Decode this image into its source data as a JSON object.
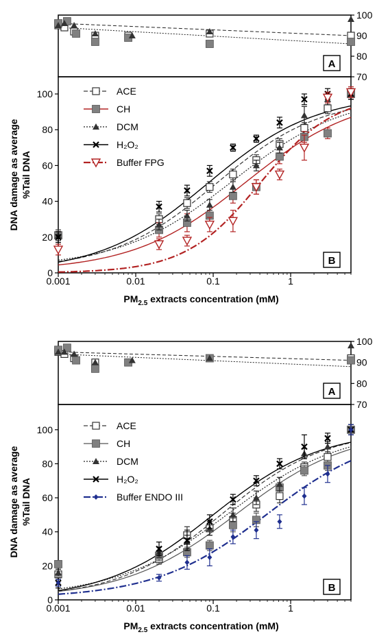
{
  "figure": {
    "panels": [
      {
        "id": "top",
        "chart_data": {
          "type": "scatter",
          "ylabel_line1": "DNA damage  as average",
          "ylabel_line2": "%Tail DNA",
          "xlabel_main": "PM",
          "xlabel_sub": "2.5",
          "xlabel_rest": " extracts concentration (mM)",
          "xscale": "log",
          "xlim": [
            0.001,
            6
          ],
          "xticks": [
            "0.001",
            "0.01",
            "0.1",
            "1"
          ],
          "ylim": [
            0,
            105
          ],
          "yticks": [
            "0",
            "20",
            "40",
            "60",
            "80",
            "100"
          ],
          "inset_ylim": [
            70,
            100
          ],
          "inset_yticks": [
            "70",
            "80",
            "90",
            "100"
          ],
          "label_A": "A",
          "label_B": "B",
          "legend_position": "top-left",
          "series": [
            {
              "name": "ACE",
              "color": "#333333",
              "marker": "open-square",
              "dash": "6,3",
              "width": 1.2,
              "x": [
                0.001,
                0.02,
                0.046,
                0.09,
                0.18,
                0.36,
                0.72,
                1.5,
                3,
                6
              ],
              "y": [
                21,
                30,
                39,
                48,
                55,
                63,
                72,
                81,
                92,
                100
              ],
              "err": [
                3,
                3,
                3,
                3,
                3,
                3,
                3,
                3,
                3,
                3
              ],
              "fit": {
                "bottom": 2,
                "top": 98,
                "ec50": 0.11,
                "hill": 0.65
              },
              "inset_x": [
                0.001,
                0.0012,
                0.0016,
                0.003,
                0.008,
                0.09,
                6
              ],
              "inset_y": [
                95,
                94,
                92,
                90,
                90,
                91,
                90
              ]
            },
            {
              "name": "CH",
              "color": "#b22222",
              "marker": "filled-square",
              "dash": "",
              "width": 1.4,
              "x": [
                0.001,
                0.02,
                0.046,
                0.09,
                0.18,
                0.36,
                0.72,
                1.5,
                3,
                6
              ],
              "y": [
                21,
                24,
                28,
                32,
                43,
                48,
                65,
                76,
                78,
                100
              ],
              "err": [
                2,
                4,
                5,
                5,
                4,
                4,
                4,
                3,
                3,
                3
              ],
              "fit": {
                "bottom": 1,
                "top": 100,
                "ec50": 0.26,
                "hill": 0.6
              },
              "inset_x": [
                0.001,
                0.0013,
                0.0017,
                0.003,
                0.008,
                0.09,
                6
              ],
              "inset_y": [
                96,
                97,
                91,
                87,
                89,
                86,
                87
              ]
            },
            {
              "name": "DCM",
              "color": "#222222",
              "marker": "filled-triangle",
              "dash": "2,2",
              "width": 1.2,
              "x": [
                0.001,
                0.02,
                0.046,
                0.09,
                0.18,
                0.36,
                0.72,
                1.5,
                3,
                6
              ],
              "y": [
                21,
                27,
                32,
                38,
                48,
                60,
                70,
                88,
                97,
                100
              ],
              "err": [
                2,
                3,
                3,
                3,
                3,
                3,
                3,
                5,
                3,
                3
              ],
              "fit": {
                "bottom": 3,
                "top": 100,
                "ec50": 0.18,
                "hill": 0.6
              },
              "inset_x": [
                0.001,
                0.0012,
                0.0016,
                0.003,
                0.009,
                0.09,
                6
              ],
              "inset_y": [
                95,
                96,
                95,
                91,
                90,
                92,
                98
              ]
            },
            {
              "name": "H₂O₂",
              "color": "#000000",
              "marker": "cross",
              "dash": "",
              "width": 1.4,
              "x": [
                0.001,
                0.02,
                0.046,
                0.09,
                0.18,
                0.36,
                0.72,
                1.5,
                3,
                6
              ],
              "y": [
                20,
                37,
                46,
                57,
                70,
                75,
                84,
                97,
                100,
                100
              ],
              "err": [
                3,
                3,
                3,
                3,
                2,
                2,
                3,
                3,
                3,
                3
              ],
              "fit": {
                "bottom": 0,
                "top": 100,
                "ec50": 0.085,
                "hill": 0.62
              },
              "inset_x": [],
              "inset_y": []
            },
            {
              "name": "Buffer FPG",
              "color": "#b22222",
              "marker": "open-triangle-down",
              "dash": "10,3,2,3",
              "width": 2.2,
              "x": [
                0.001,
                0.02,
                0.046,
                0.09,
                0.18,
                0.36,
                0.72,
                1.5,
                3,
                6
              ],
              "y": [
                13,
                16,
                18,
                27,
                29,
                48,
                55,
                70,
                98,
                101
              ],
              "err": [
                3,
                3,
                3,
                4,
                6,
                4,
                3,
                7,
                3,
                3
              ],
              "fit": {
                "bottom": 0,
                "top": 100,
                "ec50": 0.4,
                "hill": 0.9
              },
              "inset_x": [],
              "inset_y": []
            }
          ],
          "inset_lines": [
            {
              "dash": "5,3",
              "y0": 96,
              "y1": 90
            },
            {
              "dash": "2,2",
              "y0": 94,
              "y1": 86
            }
          ]
        }
      },
      {
        "id": "bottom",
        "chart_data": {
          "type": "scatter",
          "ylabel_line1": "DNA damage  as average",
          "ylabel_line2": "%Tail DNA",
          "xlabel_main": "PM",
          "xlabel_sub": "2.5",
          "xlabel_rest": " extracts concentration (mM)",
          "xscale": "log",
          "xlim": [
            0.001,
            6
          ],
          "xticks": [
            "0.001",
            "0.01",
            "0.1",
            "1"
          ],
          "ylim": [
            0,
            110
          ],
          "yticks": [
            "0",
            "20",
            "40",
            "60",
            "80",
            "100"
          ],
          "inset_ylim": [
            70,
            100
          ],
          "inset_yticks": [
            "70",
            "80",
            "90",
            "100"
          ],
          "label_A": "A",
          "label_B": "B",
          "legend_position": "top-left",
          "series": [
            {
              "name": "ACE",
              "color": "#333333",
              "marker": "open-square",
              "dash": "6,3",
              "width": 1.2,
              "x": [
                0.001,
                0.02,
                0.046,
                0.09,
                0.18,
                0.36,
                0.72,
                1.5,
                3,
                6
              ],
              "y": [
                15,
                24,
                38,
                42,
                47,
                56,
                61,
                78,
                84,
                100
              ],
              "err": [
                3,
                3,
                5,
                4,
                4,
                4,
                4,
                3,
                3,
                3
              ],
              "fit": {
                "bottom": 1,
                "top": 100,
                "ec50": 0.13,
                "hill": 0.65
              },
              "inset_x": [
                0.001,
                0.0012,
                0.0016,
                0.003,
                0.008,
                0.09,
                6
              ],
              "inset_y": [
                95,
                94,
                92,
                90,
                90,
                92,
                92
              ]
            },
            {
              "name": "CH",
              "color": "#555555",
              "marker": "filled-square",
              "dash": "",
              "width": 1.2,
              "x": [
                0.001,
                0.02,
                0.046,
                0.09,
                0.18,
                0.36,
                0.72,
                1.5,
                3,
                6
              ],
              "y": [
                21,
                26,
                28,
                32,
                44,
                47,
                66,
                76,
                79,
                100
              ],
              "err": [
                2,
                3,
                3,
                3,
                4,
                4,
                3,
                3,
                3,
                3
              ],
              "fit": {
                "bottom": 1,
                "top": 100,
                "ec50": 0.2,
                "hill": 0.6
              },
              "inset_x": [
                0.001,
                0.0013,
                0.0017,
                0.003,
                0.008,
                0.09,
                6
              ],
              "inset_y": [
                96,
                97,
                91,
                87,
                90,
                92,
                91
              ]
            },
            {
              "name": "DCM",
              "color": "#222222",
              "marker": "filled-triangle",
              "dash": "2,2",
              "width": 1.2,
              "x": [
                0.001,
                0.02,
                0.046,
                0.09,
                0.18,
                0.36,
                0.72,
                1.5,
                3,
                6
              ],
              "y": [
                16,
                28,
                34,
                42,
                50,
                60,
                68,
                86,
                90,
                100
              ],
              "err": [
                2,
                3,
                4,
                4,
                4,
                4,
                4,
                3,
                3,
                3
              ],
              "fit": {
                "bottom": 2,
                "top": 100,
                "ec50": 0.16,
                "hill": 0.6
              },
              "inset_x": [
                0.001,
                0.0012,
                0.0016,
                0.003,
                0.009,
                0.09,
                6
              ],
              "inset_y": [
                95,
                95,
                94,
                90,
                91,
                92,
                98
              ]
            },
            {
              "name": "H₂O₂",
              "color": "#000000",
              "marker": "cross",
              "dash": "",
              "width": 1.4,
              "x": [
                0.001,
                0.02,
                0.046,
                0.09,
                0.18,
                0.36,
                0.72,
                1.5,
                3,
                6
              ],
              "y": [
                10,
                30,
                35,
                46,
                59,
                70,
                80,
                90,
                95,
                100
              ],
              "err": [
                3,
                4,
                6,
                4,
                3,
                3,
                3,
                7,
                3,
                3
              ],
              "fit": {
                "bottom": 0,
                "top": 100,
                "ec50": 0.1,
                "hill": 0.62
              },
              "inset_x": [],
              "inset_y": []
            },
            {
              "name": "Buffer ENDO III",
              "color": "#1f2f8f",
              "marker": "filled-diamond",
              "dash": "10,3,2,3",
              "width": 2.2,
              "x": [
                0.001,
                0.02,
                0.046,
                0.09,
                0.18,
                0.36,
                0.72,
                1.5,
                3,
                6
              ],
              "y": [
                10,
                13,
                22,
                25,
                37,
                41,
                46,
                61,
                74,
                100
              ],
              "err": [
                2,
                2,
                4,
                5,
                4,
                5,
                4,
                5,
                5,
                3
              ],
              "fit": {
                "bottom": 1,
                "top": 100,
                "ec50": 0.5,
                "hill": 0.6
              },
              "inset_x": [],
              "inset_y": []
            }
          ],
          "inset_lines": [
            {
              "dash": "5,3",
              "y0": 95,
              "y1": 91
            },
            {
              "dash": "2,2",
              "y0": 94,
              "y1": 88
            }
          ]
        }
      }
    ]
  }
}
